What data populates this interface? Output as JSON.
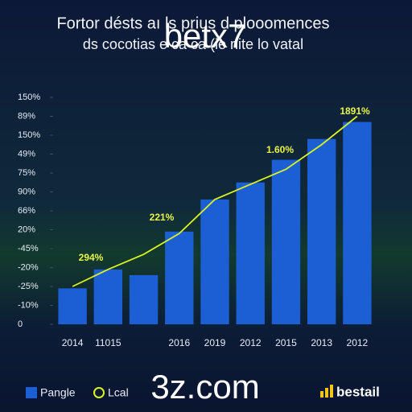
{
  "chart_data": {
    "type": "bar",
    "title": [
      "Fortor désts aı ls prius d plooomences",
      "ds cocotias e ca ca (ie nite lo vatal"
    ],
    "watermarks": [
      "betx7",
      "3z.com"
    ],
    "brand": "bestail",
    "categories": [
      "2014",
      "11015",
      null,
      "2016",
      "2019",
      "2012",
      "2015",
      "2013",
      "2012"
    ],
    "series": [
      {
        "name": "Pangle",
        "type": "bar",
        "color": "#1c5fd4",
        "values": [
          1.9,
          2.9,
          2.6,
          4.9,
          6.6,
          7.5,
          8.7,
          9.8,
          10.7
        ]
      },
      {
        "name": "Lcal",
        "type": "line",
        "color": "#d9f222",
        "values": [
          2.0,
          2.9,
          3.7,
          4.8,
          6.6,
          7.4,
          8.2,
          9.5,
          11.0
        ]
      }
    ],
    "annotations": [
      "294%",
      "221%",
      "1.60%",
      "1891%"
    ],
    "ylim": [
      0,
      12
    ],
    "yticks": [
      0,
      {
        "value": 1,
        "label": "-10%"
      },
      {
        "value": 2,
        "label": "-25%"
      },
      {
        "value": 3,
        "label": "-20%"
      },
      {
        "value": 4,
        "label": "-45%"
      },
      {
        "value": 5,
        "label": "20%"
      },
      {
        "value": 6,
        "label": "66%"
      },
      {
        "value": 7,
        "label": "90%"
      },
      {
        "value": 8,
        "label": "75%"
      },
      {
        "value": 9,
        "label": "49%"
      },
      {
        "value": 10,
        "label": "150%"
      },
      {
        "value": 11,
        "label": "89%"
      },
      {
        "value": 12,
        "label": "150%"
      }
    ]
  }
}
